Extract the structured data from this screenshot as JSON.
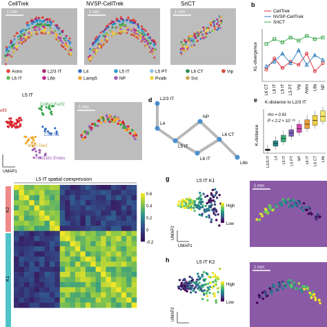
{
  "panels": {
    "a_titles": [
      "CellTrek",
      "NVSP-CellTrek",
      "SrtCT"
    ],
    "scalebar": "1 mm",
    "b_label": "b",
    "d_label": "d",
    "e_label": "e",
    "g_label": "g",
    "h_label": "h"
  },
  "legend_a": {
    "items": [
      {
        "label": "Astro",
        "color": "#e2453b"
      },
      {
        "label": "L2/3 IT",
        "color": "#a42b6e"
      },
      {
        "label": "L4",
        "color": "#3a6cc2"
      },
      {
        "label": "L5 IT",
        "color": "#2a9ec8"
      },
      {
        "label": "L5 PT",
        "color": "#8ac0e4"
      },
      {
        "label": "L6 CT",
        "color": "#2e8a4e"
      },
      {
        "label": "L6 IT",
        "color": "#66b857"
      },
      {
        "label": "L6b",
        "color": "#c02a8a"
      },
      {
        "label": "Lamp5",
        "color": "#f0a830"
      },
      {
        "label": "NP",
        "color": "#a15fb0"
      },
      {
        "label": "Pvalb",
        "color": "#f3d23c"
      },
      {
        "label": "Sst",
        "color": "#c9a64a"
      },
      {
        "label": "Vip",
        "color": "#d44c3e"
      }
    ]
  },
  "chart_b": {
    "legend": [
      {
        "label": "CellTrek",
        "color": "#d9282f"
      },
      {
        "label": "NVSP-CellTrek",
        "color": "#2e7ebf"
      },
      {
        "label": "SrtCT",
        "color": "#3aa64a"
      }
    ],
    "ylabel": "KL-divergence",
    "xticks": [
      "L6 CT",
      "L6 IT",
      "L5 IT",
      "L5 PT",
      "Vip",
      "Astro",
      "L6b",
      "NP"
    ]
  },
  "umap_c": {
    "title": "L5 IT",
    "labels": [
      "Col6a1 Fezf2",
      "Col27a1",
      "Whrn Tox2",
      "Hsd11b1 Endou",
      "elf3"
    ],
    "xlabel": "UMAP1"
  },
  "graph_d": {
    "nodes": [
      "L2/3 IT",
      "L4",
      "NP",
      "L5 IT",
      "L6 CT",
      "L6 IT",
      "L6b"
    ]
  },
  "chart_e": {
    "title": "K-distance to L2/3 IT",
    "rho": "rho = 0.91",
    "pval": "P < 2.2 × 10⁻¹⁶",
    "ylabel": "K-distance",
    "xticks": [
      "L2/3 IT",
      "L4",
      "L5 IT",
      "L5 PT",
      "NP",
      "L6 IT",
      "L6 CT",
      "L6b"
    ]
  },
  "heatmap_f": {
    "title": "L5 IT spatial coexpression",
    "groups": [
      "K2",
      "K1"
    ],
    "colorbar_ticks": [
      "0.6",
      "0.4",
      "0.2",
      "0",
      "-0.2"
    ]
  },
  "umap_g": {
    "title": "L5 IT K1",
    "legend_high": "High",
    "legend_low": "Low",
    "xlabel": "UMAP1",
    "ylabel": "UMAP2"
  },
  "umap_h": {
    "title": "L5 IT K2",
    "legend_high": "High",
    "legend_low": "Low",
    "ylabel": "UMAP2"
  },
  "chart_data": [
    {
      "type": "line",
      "title": "",
      "ylabel": "KL-divergence",
      "categories": [
        "L6 CT",
        "L6 IT",
        "L5 IT",
        "L5 PT",
        "Vip",
        "Astro",
        "L6b",
        "NP"
      ],
      "series": [
        {
          "name": "CellTrek",
          "values": [
            0.6,
            1.3,
            0.7,
            1.1,
            0.9,
            1.6,
            0.5,
            1.0
          ]
        },
        {
          "name": "NVSP-CellTrek",
          "values": [
            0.8,
            1.1,
            1.6,
            1.0,
            1.8,
            0.9,
            1.5,
            1.2
          ]
        },
        {
          "name": "SrtCT",
          "values": [
            2.2,
            2.5,
            2.3,
            2.6,
            2.4,
            2.7,
            2.5,
            2.6
          ]
        }
      ]
    },
    {
      "type": "box",
      "title": "K-distance to L2/3 IT",
      "ylabel": "K-distance",
      "categories": [
        "L2/3 IT",
        "L4",
        "L5 IT",
        "L5 PT",
        "NP",
        "L6 IT",
        "L6 CT",
        "L6b"
      ],
      "boxes": [
        {
          "q1": 0.02,
          "median": 0.03,
          "q3": 0.05
        },
        {
          "q1": 0.1,
          "median": 0.15,
          "q3": 0.2
        },
        {
          "q1": 0.18,
          "median": 0.24,
          "q3": 0.3
        },
        {
          "q1": 0.28,
          "median": 0.34,
          "q3": 0.4
        },
        {
          "q1": 0.35,
          "median": 0.42,
          "q3": 0.5
        },
        {
          "q1": 0.42,
          "median": 0.5,
          "q3": 0.58
        },
        {
          "q1": 0.48,
          "median": 0.57,
          "q3": 0.66
        },
        {
          "q1": 0.55,
          "median": 0.64,
          "q3": 0.74
        }
      ],
      "colors": [
        "#1a1a1a",
        "#2a8a8a",
        "#3ab07a",
        "#7a5fb8",
        "#d04ab0",
        "#e8a03a",
        "#f0d040",
        "#f8e868"
      ]
    }
  ]
}
